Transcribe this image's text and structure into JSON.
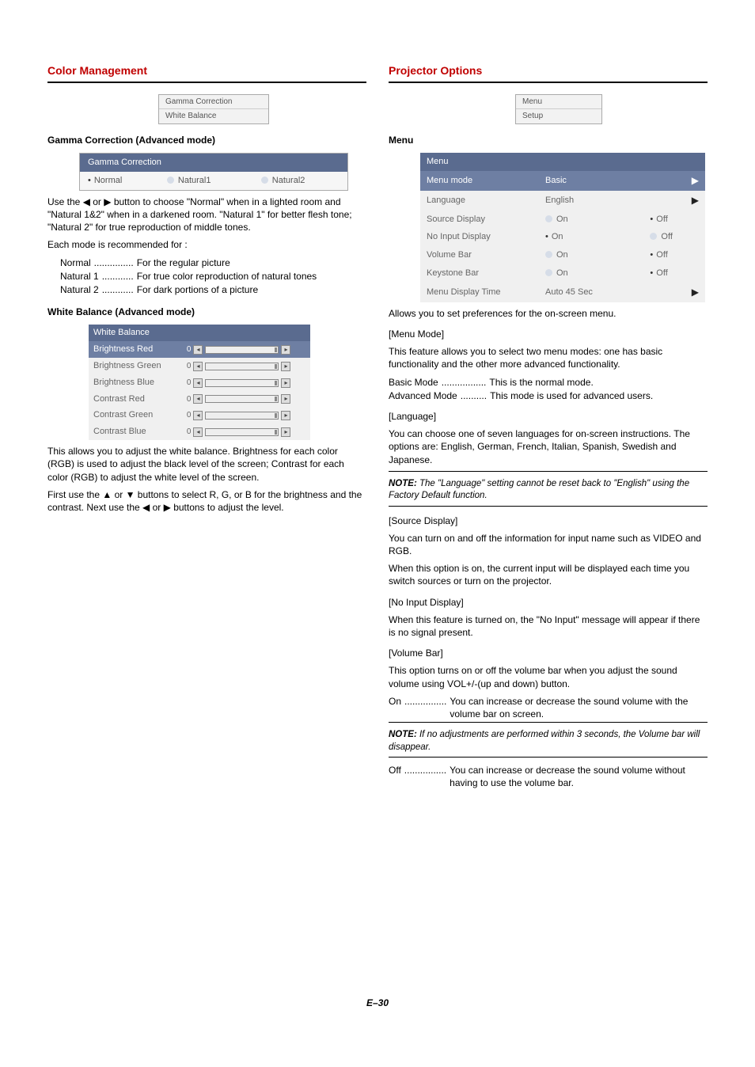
{
  "left": {
    "title": "Color Management",
    "small_menu": [
      "Gamma Correction",
      "White Balance"
    ],
    "gamma": {
      "heading": "Gamma Correction (Advanced mode)",
      "table_header": "Gamma Correction",
      "opt_sel": "Normal",
      "opt1": "Natural1",
      "opt2": "Natural2",
      "para1": "Use the ◀ or ▶ button to choose \"Normal\" when in a lighted room and \"Natural 1&2\" when in a darkened room. \"Natural 1\" for better flesh tone; \"Natural 2\" for true reproduction of middle tones.",
      "para2": "Each mode is recommended for :",
      "defs": [
        {
          "l": "Normal",
          "d": "...............",
          "t": "For the regular picture"
        },
        {
          "l": "Natural 1",
          "d": "............",
          "t": "For true color reproduction of natural tones"
        },
        {
          "l": "Natural 2",
          "d": "............",
          "t": "For dark portions of a picture"
        }
      ]
    },
    "wb": {
      "heading": "White Balance (Advanced mode)",
      "header": "White Balance",
      "rows": [
        {
          "label": "Brightness Red",
          "val": "0",
          "sel": true
        },
        {
          "label": "Brightness Green",
          "val": "0",
          "sel": false
        },
        {
          "label": "Brightness Blue",
          "val": "0",
          "sel": false
        },
        {
          "label": "Contrast Red",
          "val": "0",
          "sel": false
        },
        {
          "label": "Contrast Green",
          "val": "0",
          "sel": false
        },
        {
          "label": "Contrast Blue",
          "val": "0",
          "sel": false
        }
      ],
      "para1": "This allows you to adjust the white balance. Brightness for each color (RGB) is used to adjust the black level of the screen; Contrast for each color (RGB) to adjust the white level of the screen.",
      "para2": "First use the ▲ or ▼ buttons to select R, G, or B for the brightness and the contrast. Next use the ◀ or ▶ buttons to adjust the level."
    }
  },
  "right": {
    "title": "Projector Options",
    "small_menu": [
      "Menu",
      "Setup"
    ],
    "menu_heading": "Menu",
    "menu_table": {
      "header": "Menu",
      "rows": [
        {
          "label": "Menu mode",
          "valL": "Basic",
          "valR_arrow": true,
          "sel": true,
          "type": "text"
        },
        {
          "label": "Language",
          "valL": "English",
          "valR_arrow": true,
          "sel": false,
          "type": "text"
        },
        {
          "label": "Source Display",
          "on_sel": false,
          "off_sel": true,
          "type": "onoff"
        },
        {
          "label": "No Input Display",
          "on_sel": true,
          "off_sel": false,
          "type": "onoff"
        },
        {
          "label": "Volume Bar",
          "on_sel": false,
          "off_sel": true,
          "type": "onoff"
        },
        {
          "label": "Keystone Bar",
          "on_sel": false,
          "off_sel": true,
          "type": "onoff"
        },
        {
          "label": "Menu Display Time",
          "valL": "Auto 45 Sec",
          "valR_arrow": true,
          "sel": false,
          "type": "text"
        }
      ]
    },
    "intro": "Allows you to set preferences for the on-screen menu.",
    "mm": {
      "h": "[Menu Mode]",
      "p": "This feature allows you to select two menu modes: one has basic functionality and the other more advanced functionality.",
      "defs": [
        {
          "l": "Basic Mode",
          "d": ".................",
          "t": "This is the normal mode."
        },
        {
          "l": "Advanced Mode",
          "d": "..........",
          "t": "This mode is used for advanced users."
        }
      ]
    },
    "lang": {
      "h": "[Language]",
      "p": "You can choose one of seven languages for on-screen instructions. The options are: English, German, French, Italian, Spanish, Swedish and Japanese.",
      "note": "The \"Language\" setting cannot be reset back to \"English\" using the Factory Default function."
    },
    "src": {
      "h": "[Source Display]",
      "p1": "You can turn on and off the information for input name such as VIDEO and RGB.",
      "p2": "When this option is on, the current input will be displayed each time you switch sources or turn on the projector."
    },
    "noin": {
      "h": "[No Input Display]",
      "p": "When this feature is turned on, the \"No Input\" message will appear if there is no signal present."
    },
    "vol": {
      "h": "[Volume Bar]",
      "p": "This option turns on or off the volume bar when you adjust the sound volume using VOL+/-(up and down) button.",
      "on": {
        "l": "On",
        "d": "................",
        "t": "You can increase or decrease the sound volume with the volume bar on screen."
      },
      "note": "If no adjustments are performed within 3 seconds, the Volume bar will disappear.",
      "off": {
        "l": "Off",
        "d": "................",
        "t": "You can increase or decrease the sound volume without having to use the volume bar."
      }
    }
  },
  "footer": "E–30"
}
